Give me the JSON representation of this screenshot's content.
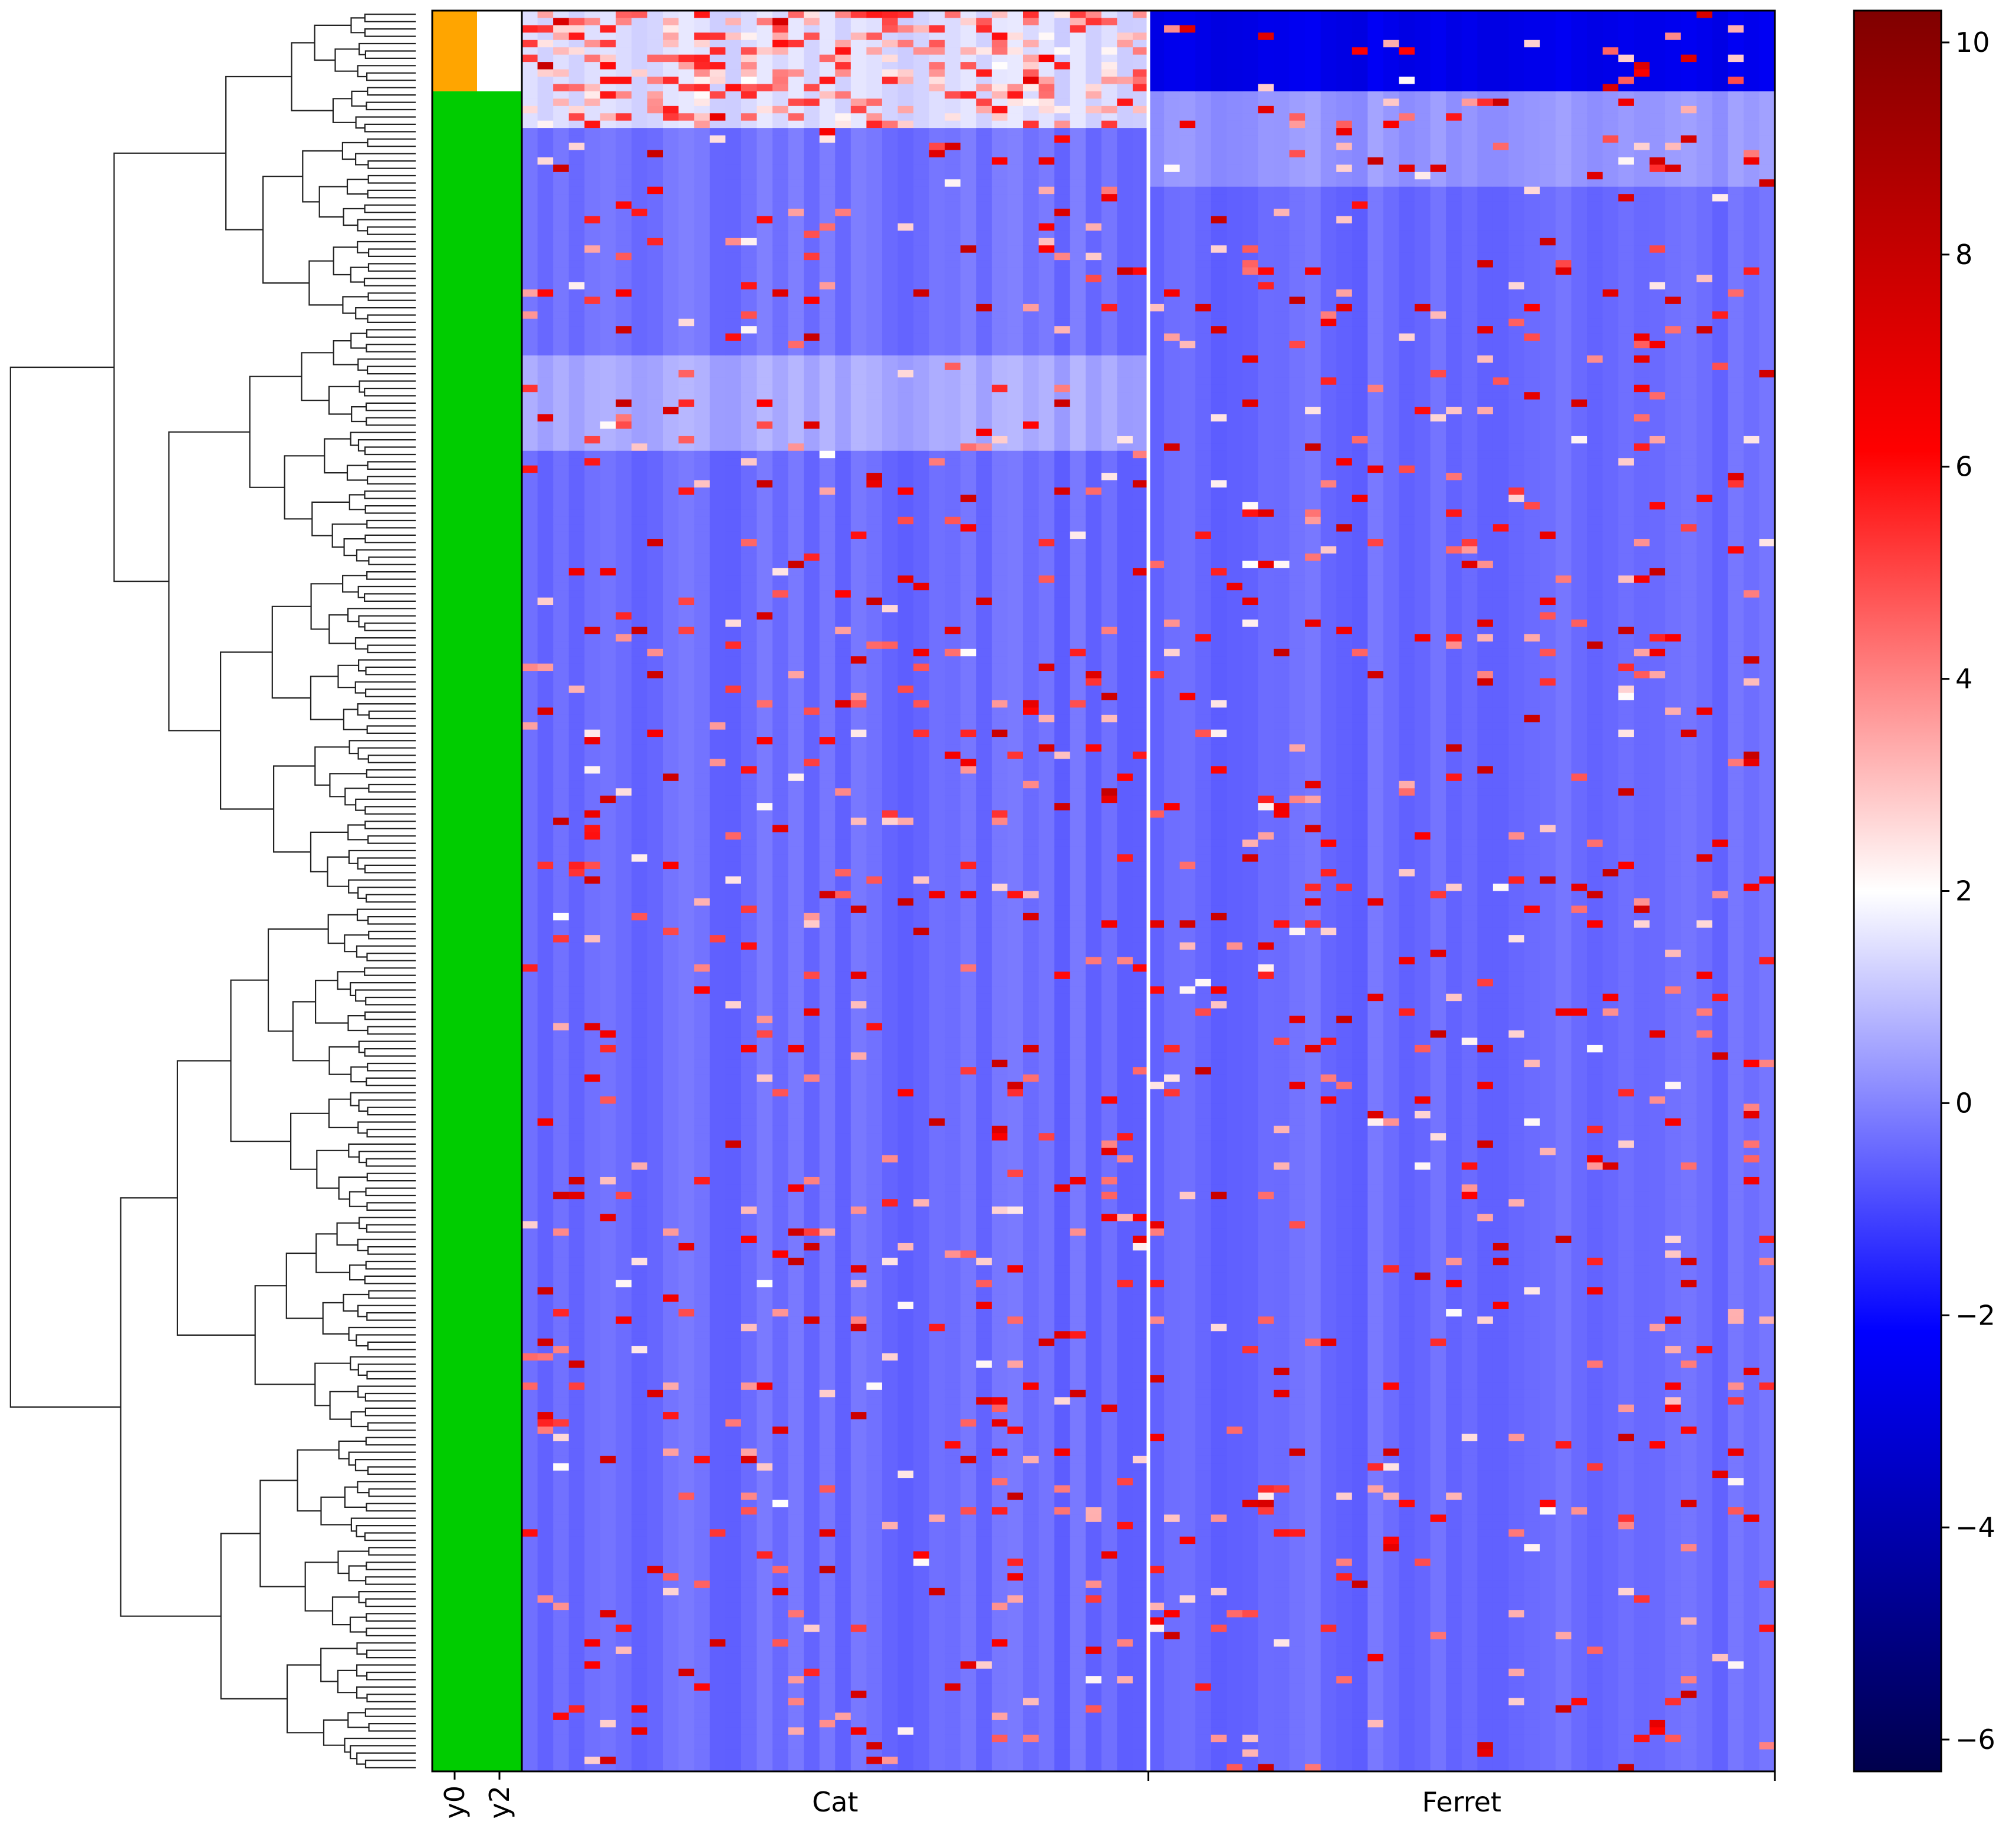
{
  "chart_data": {
    "type": "heatmap",
    "title": "",
    "xlabel": "",
    "ylabel": "",
    "row_dendrogram": true,
    "n_rows": 240,
    "row_colors": {
      "tick_labels": [
        "y0",
        "y2"
      ],
      "segments": [
        {
          "column": "y0",
          "from_row": 0,
          "to_row": 11,
          "color": "#ffa500"
        },
        {
          "column": "y0",
          "from_row": 11,
          "to_row": 240,
          "color": "#00cc00"
        },
        {
          "column": "y2",
          "from_row": 0,
          "to_row": 11,
          "color": "#ffffff"
        },
        {
          "column": "y2",
          "from_row": 11,
          "to_row": 240,
          "color": "#00cc00"
        }
      ]
    },
    "column_groups": [
      {
        "label": "Cat",
        "n_columns": 40
      },
      {
        "label": "Ferret",
        "n_columns": 40
      }
    ],
    "colorbar": {
      "colormap": "seismic",
      "vmin": -6.3,
      "vmax": 10.3,
      "center": 2,
      "ticks": [
        10,
        8,
        6,
        4,
        2,
        0,
        -2,
        -4,
        -6
      ],
      "tick_labels": [
        "10",
        "8",
        "6",
        "4",
        "2",
        "0",
        "−2",
        "−4",
        "−6"
      ]
    },
    "values_summary": {
      "background_value": -0.4,
      "row_blocks_cat": [
        {
          "from_row": 0,
          "to_row": 16,
          "mean": 1.4
        },
        {
          "from_row": 16,
          "to_row": 47,
          "mean": -0.3
        },
        {
          "from_row": 47,
          "to_row": 60,
          "mean": 0.6
        },
        {
          "from_row": 60,
          "to_row": 240,
          "mean": -0.4
        }
      ],
      "row_blocks_ferret": [
        {
          "from_row": 0,
          "to_row": 11,
          "mean": -2.6
        },
        {
          "from_row": 11,
          "to_row": 24,
          "mean": 0.3
        },
        {
          "from_row": 24,
          "to_row": 240,
          "mean": -0.4
        }
      ],
      "max_value": 10,
      "min_value": -6
    },
    "grid": false,
    "legend": "colorbar-right"
  }
}
